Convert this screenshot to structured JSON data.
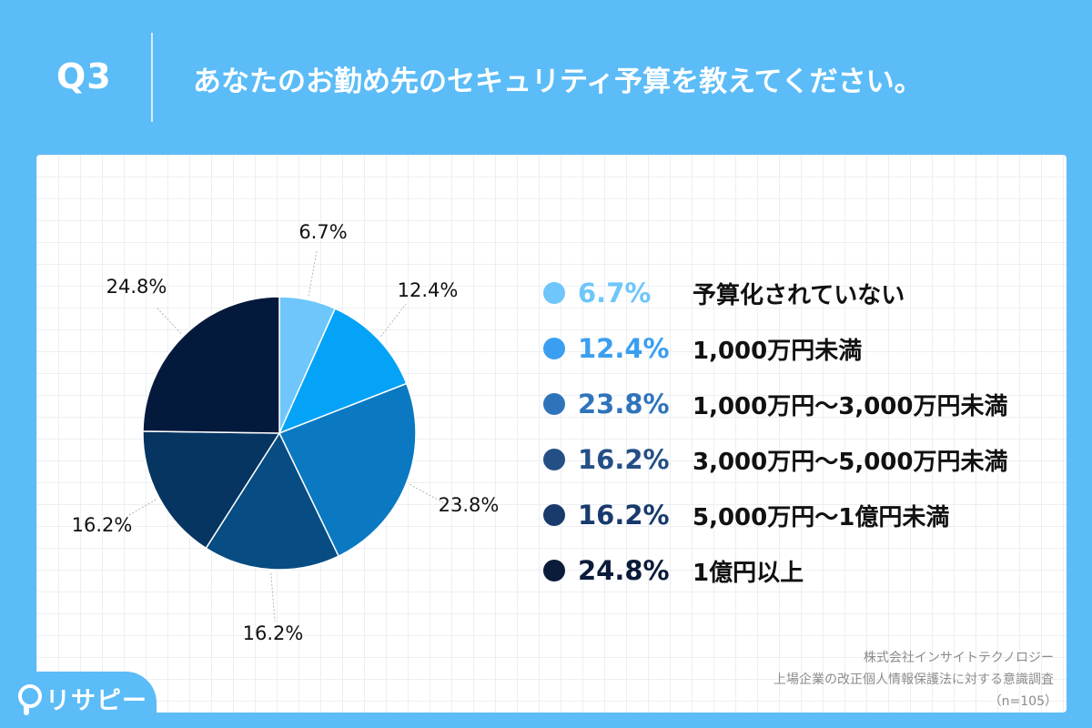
{
  "header": {
    "q_label": "Q3",
    "question": "あなたのお勤め先のセキュリティ予算を教えてください。"
  },
  "chart_data": {
    "type": "pie",
    "labels": [
      "予算化されていない",
      "1,000万円未満",
      "1,000万円～3,000万円未満",
      "3,000万円～5,000万円未満",
      "5,000万円～1億円未満",
      "1億円以上"
    ],
    "values": [
      6.7,
      12.4,
      23.8,
      16.2,
      16.2,
      24.8
    ],
    "value_labels": [
      "6.7%",
      "12.4%",
      "23.8%",
      "16.2%",
      "16.2%",
      "24.8%"
    ],
    "colors": [
      "#6ec6fb",
      "#05a3f7",
      "#0a79c2",
      "#074c82",
      "#063562",
      "#041a3d"
    ],
    "legend_colors": [
      "#6ec6fb",
      "#3a9ff0",
      "#2f74bb",
      "#244f86",
      "#183a6c",
      "#0b1b3a"
    ],
    "legend_placement": "right"
  },
  "source": {
    "line1": "株式会社インサイトテクノロジー",
    "line2": "上場企業の改正個人情報保護法に対する意識調査",
    "line3": "（n=105）"
  },
  "brand": {
    "logo_text": "リサピー"
  }
}
